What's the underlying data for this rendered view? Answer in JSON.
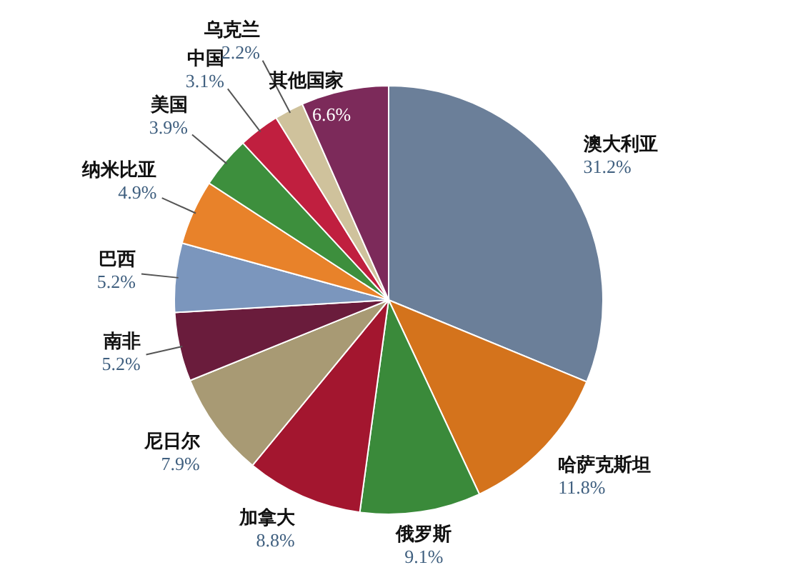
{
  "chart_data": {
    "type": "pie",
    "categories": [
      "澳大利亚",
      "哈萨克斯坦",
      "俄罗斯",
      "加拿大",
      "尼日尔",
      "南非",
      "巴西",
      "纳米比亚",
      "美国",
      "中国",
      "乌克兰",
      "其他国家"
    ],
    "values": [
      31.2,
      11.8,
      9.1,
      8.8,
      7.9,
      5.2,
      5.2,
      4.9,
      3.9,
      3.1,
      2.2,
      6.6
    ],
    "colors": [
      "#6b7f99",
      "#d4731c",
      "#3a8a3a",
      "#a3162f",
      "#a89a74",
      "#6a1c3c",
      "#7b96bd",
      "#e8822a",
      "#3d8f3d",
      "#c01f3f",
      "#cfc29c",
      "#7c2a5a"
    ],
    "value_labels": [
      "31.2%",
      "11.8%",
      "9.1%",
      "8.8%",
      "7.9%",
      "5.2%",
      "5.2%",
      "4.9%",
      "3.9%",
      "3.1%",
      "2.2%",
      "6.6%"
    ]
  }
}
